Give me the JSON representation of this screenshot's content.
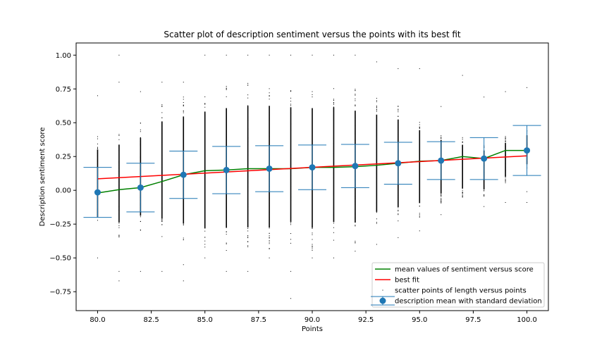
{
  "chart_data": {
    "type": "scatter",
    "title": "Scatter plot of description sentiment versus the points with its best fit",
    "xlabel": "Points",
    "ylabel": "Description sentiment score",
    "xlim": [
      79.0,
      101.0
    ],
    "ylim": [
      -0.89,
      1.09
    ],
    "x_ticks": [
      80.0,
      82.5,
      85.0,
      87.5,
      90.0,
      92.5,
      95.0,
      97.5,
      100.0
    ],
    "x_tick_labels": [
      "80.0",
      "82.5",
      "85.0",
      "87.5",
      "90.0",
      "92.5",
      "95.0",
      "97.5",
      "100.0"
    ],
    "y_ticks": [
      -0.75,
      -0.5,
      -0.25,
      0.0,
      0.25,
      0.5,
      0.75,
      1.0
    ],
    "y_tick_labels": [
      "−0.75",
      "−0.50",
      "−0.25",
      "0.00",
      "0.25",
      "0.50",
      "0.75",
      "1.00"
    ],
    "grid": false,
    "legend_position": "lower right",
    "series": [
      {
        "name": "mean values of sentiment versus score",
        "kind": "line",
        "color": "#008000",
        "x": [
          80,
          81,
          82,
          83,
          84,
          85,
          86,
          87,
          88,
          89,
          90,
          91,
          92,
          93,
          94,
          95,
          96,
          97,
          98,
          99,
          100
        ],
        "y": [
          -0.02,
          0.005,
          0.02,
          0.065,
          0.115,
          0.145,
          0.15,
          0.16,
          0.16,
          0.16,
          0.17,
          0.17,
          0.175,
          0.185,
          0.2,
          0.215,
          0.22,
          0.25,
          0.235,
          0.295,
          0.295
        ]
      },
      {
        "name": "best fit",
        "kind": "line",
        "color": "#ff0000",
        "x": [
          80,
          100
        ],
        "y": [
          0.085,
          0.255
        ]
      },
      {
        "name": "scatter points of length versus points",
        "kind": "scatter",
        "color": "#000000",
        "x": [
          80,
          81,
          82,
          83,
          84,
          85,
          86,
          87,
          88,
          89,
          90,
          91,
          92,
          93,
          94,
          95,
          96,
          97,
          98,
          99,
          100
        ],
        "dense_ymin": [
          -0.3,
          -0.35,
          -0.3,
          -0.35,
          -0.4,
          -0.45,
          -0.45,
          -0.45,
          -0.45,
          -0.4,
          -0.45,
          -0.4,
          -0.4,
          -0.3,
          -0.25,
          -0.2,
          -0.1,
          -0.05,
          -0.05,
          0.05,
          0.15
        ],
        "dense_ymax": [
          0.4,
          0.45,
          0.5,
          0.65,
          0.7,
          0.75,
          0.78,
          0.8,
          0.8,
          0.78,
          0.78,
          0.78,
          0.75,
          0.7,
          0.65,
          0.55,
          0.45,
          0.4,
          0.35,
          0.4,
          0.45
        ],
        "outliers": [
          [
            80,
            0.7
          ],
          [
            80,
            -0.5
          ],
          [
            81,
            1.0
          ],
          [
            81,
            0.8
          ],
          [
            81,
            -0.6
          ],
          [
            81,
            -0.67
          ],
          [
            82,
            0.73
          ],
          [
            82,
            -0.6
          ],
          [
            83,
            0.8
          ],
          [
            83,
            -0.6
          ],
          [
            84,
            0.8
          ],
          [
            84,
            -0.55
          ],
          [
            84,
            -0.67
          ],
          [
            85,
            1.0
          ],
          [
            85,
            -0.5
          ],
          [
            86,
            1.0
          ],
          [
            86,
            -0.6
          ],
          [
            87,
            1.0
          ],
          [
            87,
            -0.6
          ],
          [
            88,
            1.0
          ],
          [
            88,
            -0.5
          ],
          [
            89,
            1.0
          ],
          [
            89,
            -0.6
          ],
          [
            89,
            -0.8
          ],
          [
            90,
            1.0
          ],
          [
            90,
            -0.5
          ],
          [
            91,
            1.0
          ],
          [
            91,
            -0.5
          ],
          [
            92,
            1.0
          ],
          [
            92,
            -0.45
          ],
          [
            93,
            0.95
          ],
          [
            93,
            -0.4
          ],
          [
            94,
            0.9
          ],
          [
            94,
            -0.35
          ],
          [
            95,
            0.9
          ],
          [
            95,
            -0.3
          ],
          [
            96,
            0.62
          ],
          [
            96,
            -0.18
          ],
          [
            97,
            0.85
          ],
          [
            97,
            -0.05
          ],
          [
            98,
            0.69
          ],
          [
            98,
            -0.12
          ],
          [
            99,
            0.73
          ],
          [
            99,
            -0.09
          ],
          [
            100,
            0.76
          ],
          [
            100,
            -0.01
          ],
          [
            100,
            -0.09
          ]
        ]
      },
      {
        "name": "description mean with standard deviation",
        "kind": "errorbar",
        "color": "#1f77b4",
        "x": [
          80,
          82,
          84,
          86,
          88,
          90,
          92,
          94,
          96,
          98,
          100
        ],
        "y": [
          -0.015,
          0.02,
          0.115,
          0.15,
          0.16,
          0.17,
          0.18,
          0.2,
          0.22,
          0.235,
          0.295
        ],
        "yerr": [
          0.185,
          0.18,
          0.175,
          0.175,
          0.17,
          0.165,
          0.16,
          0.155,
          0.14,
          0.155,
          0.185
        ]
      }
    ]
  }
}
